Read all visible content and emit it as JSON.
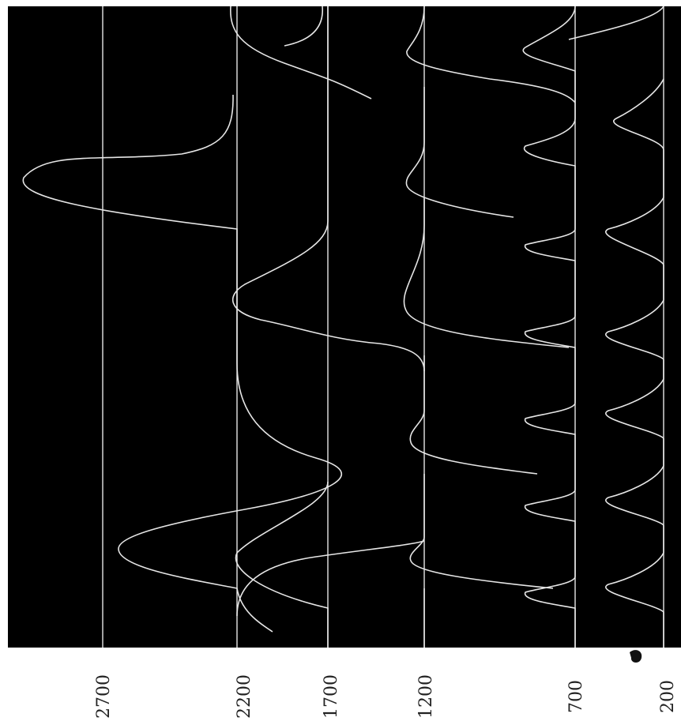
{
  "chart_data": {
    "type": "line",
    "title": "",
    "xlabel": "",
    "ylabel": "",
    "orientation": "rotated-90",
    "baseline_ticks": [
      2700,
      2200,
      1700,
      1200,
      700,
      200
    ],
    "tick_labels": [
      "2700",
      "2200",
      "1700",
      "1200",
      "700",
      "200"
    ],
    "colors": {
      "background": "#000000",
      "trace": "#e6e6e6",
      "page": "#ffffff",
      "text": "#222222"
    },
    "grid": false,
    "legend": "none",
    "series": [
      {
        "baseline": 2700,
        "trace": "flat"
      },
      {
        "baseline": 2200,
        "trace": "two slow swings with one tall excursion"
      },
      {
        "baseline": 1700,
        "trace": "periodic swings"
      },
      {
        "baseline": 1200,
        "trace": "periodic swings"
      },
      {
        "baseline": 700,
        "trace": "fast periodic swings"
      },
      {
        "baseline": 200,
        "trace": "fast periodic swings"
      }
    ]
  }
}
